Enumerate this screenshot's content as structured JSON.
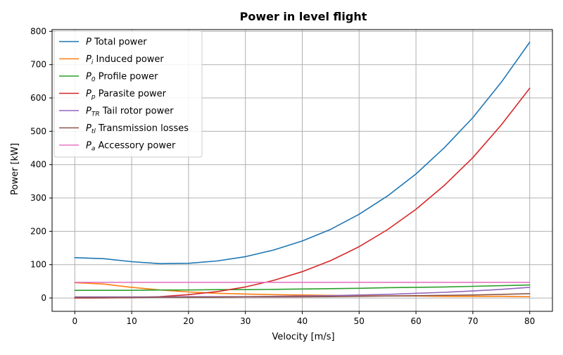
{
  "chart_data": {
    "type": "line",
    "title": "Power in level flight",
    "xlabel": "Velocity [m/s]",
    "ylabel": "Power [kW]",
    "xlim": [
      -4,
      84
    ],
    "ylim": [
      -40,
      805
    ],
    "xticks": [
      0,
      10,
      20,
      30,
      40,
      50,
      60,
      70,
      80
    ],
    "yticks": [
      0,
      100,
      200,
      300,
      400,
      500,
      600,
      700,
      800
    ],
    "grid": true,
    "legend_position": "top-left",
    "x": [
      0,
      5,
      10,
      15,
      20,
      25,
      30,
      35,
      40,
      45,
      50,
      55,
      60,
      65,
      70,
      75,
      80
    ],
    "series": [
      {
        "symbol": "P",
        "subscript": "",
        "label": "Total power",
        "color": "#1f77b4",
        "values": [
          121,
          118,
          109,
          103,
          104,
          111,
          124,
          144,
          171,
          206,
          251,
          306,
          372,
          451,
          541,
          647,
          767
        ]
      },
      {
        "symbol": "P",
        "subscript": "i",
        "label": "Induced power",
        "color": "#ff7f0e",
        "values": [
          46,
          42,
          32,
          24,
          18,
          14,
          12,
          10,
          9,
          8,
          7,
          6,
          6,
          5,
          5,
          5,
          4
        ]
      },
      {
        "symbol": "P",
        "subscript": "0",
        "label": "Profile power",
        "color": "#2ca02c",
        "values": [
          23,
          23,
          23,
          24,
          24,
          25,
          25,
          26,
          27,
          28,
          29,
          31,
          32,
          33,
          35,
          37,
          39
        ]
      },
      {
        "symbol": "P",
        "subscript": "p",
        "label": "Parasite power",
        "color": "#d62728",
        "values": [
          0,
          0.2,
          1.2,
          4,
          10,
          19,
          33,
          53,
          79,
          112,
          154,
          205,
          266,
          338,
          421,
          519,
          629
        ]
      },
      {
        "symbol": "P",
        "subscript": "TR",
        "label": "Tail rotor power",
        "color": "#9467bd",
        "values": [
          3,
          3,
          3,
          3,
          4,
          4,
          4,
          5,
          6,
          7,
          9,
          11,
          14,
          17,
          21,
          26,
          32
        ]
      },
      {
        "symbol": "P",
        "subscript": "tl",
        "label": "Transmission losses",
        "color": "#8c564b",
        "values": [
          1,
          1,
          1.5,
          2,
          2,
          2,
          3,
          3,
          3.5,
          4,
          5,
          6,
          7,
          8,
          9,
          11,
          13
        ]
      },
      {
        "symbol": "P",
        "subscript": "a",
        "label": "Accessory power",
        "color": "#e377c2",
        "values": [
          47,
          47,
          47,
          47,
          47,
          47,
          47,
          47,
          47,
          47,
          47,
          47,
          47,
          47,
          47,
          47,
          47
        ]
      }
    ]
  }
}
